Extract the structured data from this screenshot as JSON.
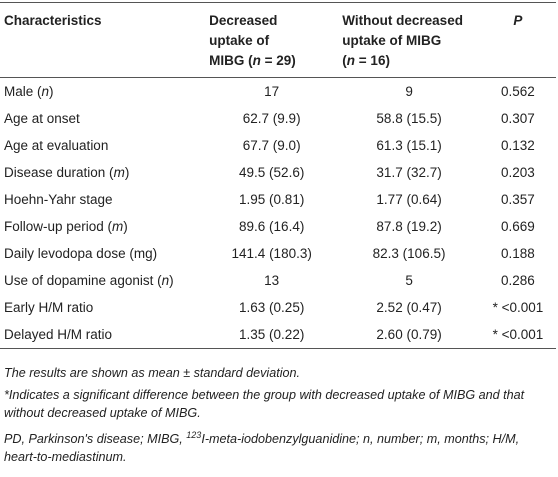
{
  "table": {
    "header": {
      "characteristics": "Characteristics",
      "decreased": [
        "Decreased",
        "uptake of",
        "MIBG (",
        "n",
        " = 29)"
      ],
      "without": [
        "Without decreased",
        "uptake of MIBG",
        "(",
        "n",
        " = 16)"
      ],
      "p": "P"
    },
    "rows": [
      {
        "label": [
          "Male (",
          "n",
          ")"
        ],
        "cells": [
          "17",
          "9",
          "0.562"
        ]
      },
      {
        "label": [
          "Age at onset"
        ],
        "cells": [
          "62.7 (9.9)",
          "58.8 (15.5)",
          "0.307"
        ]
      },
      {
        "label": [
          "Age at evaluation"
        ],
        "cells": [
          "67.7 (9.0)",
          "61.3 (15.1)",
          "0.132"
        ]
      },
      {
        "label": [
          "Disease duration (",
          "m",
          ")"
        ],
        "cells": [
          "49.5 (52.6)",
          "31.7 (32.7)",
          "0.203"
        ]
      },
      {
        "label": [
          "Hoehn-Yahr stage"
        ],
        "cells": [
          "1.95 (0.81)",
          "1.77 (0.64)",
          "0.357"
        ]
      },
      {
        "label": [
          "Follow-up period (",
          "m",
          ")"
        ],
        "cells": [
          "89.6 (16.4)",
          "87.8 (19.2)",
          "0.669"
        ]
      },
      {
        "label": [
          "Daily levodopa dose (mg)"
        ],
        "cells": [
          "141.4 (180.3)",
          "82.3 (106.5)",
          "0.188"
        ]
      },
      {
        "label": [
          "Use of dopamine agonist (",
          "n",
          ")"
        ],
        "cells": [
          "13",
          "5",
          "0.286"
        ]
      },
      {
        "label": [
          "Early H/M ratio"
        ],
        "cells": [
          "1.63 (0.25)",
          "2.52 (0.47)",
          "* <0.001"
        ]
      },
      {
        "label": [
          "Delayed H/M ratio"
        ],
        "cells": [
          "1.35 (0.22)",
          "2.60 (0.79)",
          "* <0.001"
        ]
      }
    ]
  },
  "footnotes": {
    "summary": "The results are shown as mean ± standard deviation.",
    "significance": "*Indicates a significant difference between the group with decreased uptake of MIBG and that without decreased uptake of MIBG.",
    "abbreviations": [
      "PD, Parkinson's disease; MIBG, ",
      "123",
      "I-meta-iodobenzylguanidine; n, number; m, months; H/M, heart-to-mediastinum."
    ]
  }
}
